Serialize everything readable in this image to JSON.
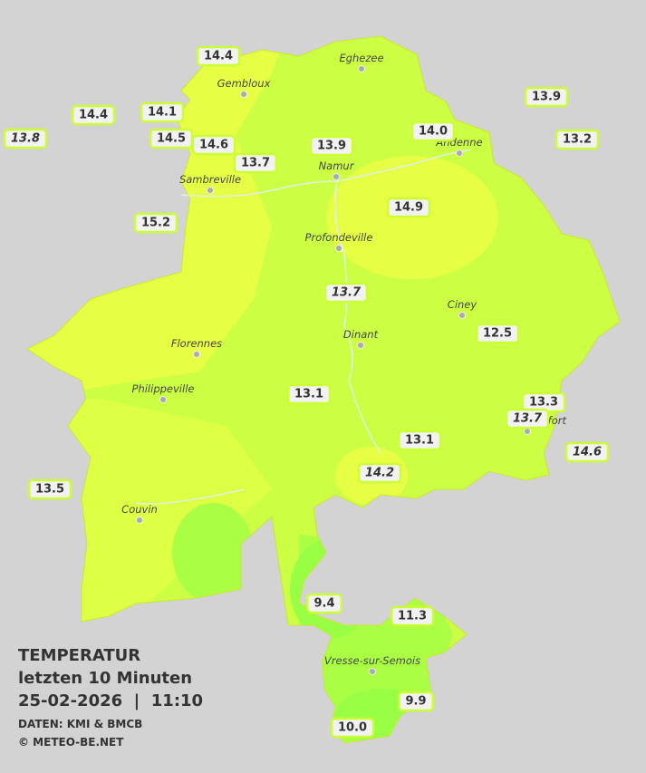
{
  "title": {
    "heading": "TEMPERATUR",
    "period": "letzten 10 Minuten",
    "datetime": "25-02-2026  |  11:10",
    "source": "DATEN: KMI & BMCB",
    "copyright": "© METEO-BE.NET"
  },
  "cities": [
    "Eghezee",
    "Gembloux",
    "Andenne",
    "Namur",
    "Sambreville",
    "Profondeville",
    "Ciney",
    "Dinant",
    "Florennes",
    "Philippeville",
    "Rochefort",
    "Couvin",
    "Vresse-sur-Semois"
  ],
  "stations": [
    {
      "label": "14.4"
    },
    {
      "label": "14.4"
    },
    {
      "label": "14.1"
    },
    {
      "label": "13.8",
      "italic": true
    },
    {
      "label": "14.5"
    },
    {
      "label": "14.6"
    },
    {
      "label": "13.7"
    },
    {
      "label": "13.9"
    },
    {
      "label": "14.0"
    },
    {
      "label": "13.9"
    },
    {
      "label": "13.2"
    },
    {
      "label": "15.2"
    },
    {
      "label": "14.9"
    },
    {
      "label": "13.7",
      "italic": true
    },
    {
      "label": "12.5"
    },
    {
      "label": "13.1"
    },
    {
      "label": "13.3"
    },
    {
      "label": "13.7",
      "italic": true
    },
    {
      "label": "13.1"
    },
    {
      "label": "14.6",
      "italic": true
    },
    {
      "label": "14.2",
      "italic": true
    },
    {
      "label": "13.5"
    },
    {
      "label": "9.4"
    },
    {
      "label": "11.3"
    },
    {
      "label": "9.9"
    },
    {
      "label": "10.0"
    }
  ]
}
